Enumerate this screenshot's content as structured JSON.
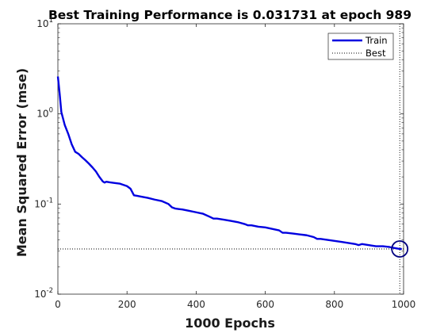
{
  "chart_data": {
    "type": "line",
    "title": "Best Training Performance is 0.031731 at epoch 989",
    "xlabel": "1000 Epochs",
    "ylabel": "Mean Squared Error  (mse)",
    "xlim": [
      0,
      1000
    ],
    "ylim": [
      0.01,
      10
    ],
    "yscale": "log",
    "grid": false,
    "legend_position": "top-right",
    "x_ticks": [
      "0",
      "200",
      "400",
      "600",
      "800",
      "1000"
    ],
    "y_ticks": [
      {
        "base": "10",
        "exp": "-2",
        "value": 0.01
      },
      {
        "base": "10",
        "exp": "-1",
        "value": 0.1
      },
      {
        "base": "10",
        "exp": "0",
        "value": 1
      },
      {
        "base": "10",
        "exp": "1",
        "value": 10
      }
    ],
    "series": [
      {
        "name": "Train",
        "color": "#0000e0",
        "x": [
          0,
          5,
          10,
          20,
          30,
          40,
          50,
          60,
          70,
          80,
          90,
          100,
          110,
          120,
          130,
          135,
          140,
          150,
          160,
          180,
          200,
          210,
          220,
          230,
          240,
          260,
          280,
          300,
          320,
          330,
          340,
          350,
          360,
          380,
          400,
          420,
          440,
          450,
          460,
          480,
          500,
          520,
          540,
          550,
          560,
          580,
          600,
          620,
          640,
          650,
          660,
          680,
          700,
          720,
          740,
          750,
          760,
          780,
          800,
          820,
          840,
          860,
          870,
          880,
          900,
          920,
          940,
          960,
          980,
          989,
          995
        ],
        "y": [
          2.6,
          1.7,
          1.05,
          0.75,
          0.6,
          0.46,
          0.38,
          0.36,
          0.33,
          0.305,
          0.28,
          0.255,
          0.23,
          0.2,
          0.178,
          0.173,
          0.177,
          0.174,
          0.172,
          0.168,
          0.158,
          0.148,
          0.125,
          0.123,
          0.121,
          0.117,
          0.112,
          0.108,
          0.1,
          0.092,
          0.089,
          0.088,
          0.087,
          0.084,
          0.081,
          0.078,
          0.072,
          0.069,
          0.069,
          0.067,
          0.065,
          0.063,
          0.06,
          0.058,
          0.058,
          0.056,
          0.055,
          0.053,
          0.051,
          0.048,
          0.048,
          0.047,
          0.046,
          0.045,
          0.043,
          0.041,
          0.041,
          0.04,
          0.039,
          0.038,
          0.037,
          0.036,
          0.035,
          0.036,
          0.035,
          0.034,
          0.034,
          0.0333,
          0.0322,
          0.031731,
          0.0318
        ]
      },
      {
        "name": "Best",
        "color": "#000000",
        "style": "dotted",
        "horizontal_y": 0.031731,
        "vertical_x": 989
      }
    ],
    "best_marker": {
      "x": 989,
      "y": 0.031731,
      "color": "#000080",
      "shape": "circle"
    }
  }
}
